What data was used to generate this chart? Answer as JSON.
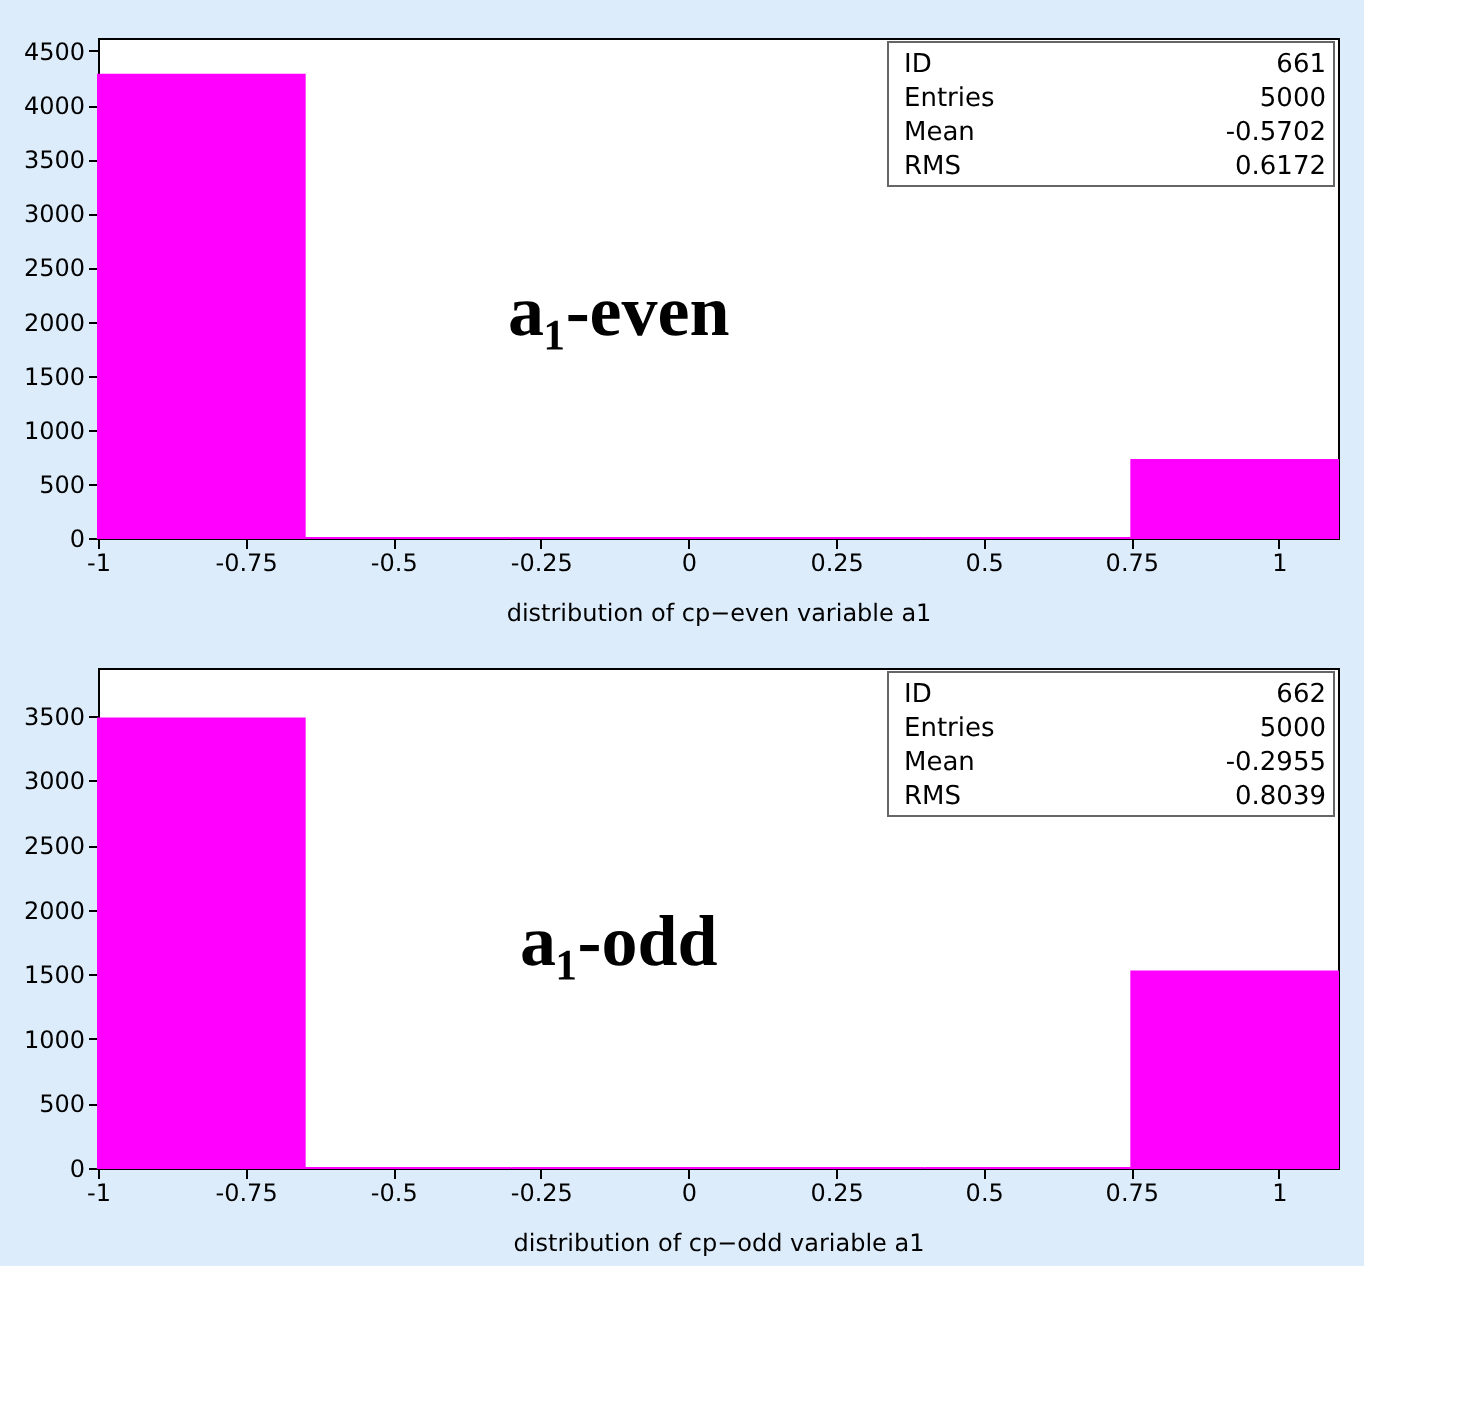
{
  "chart_data": [
    {
      "type": "histogram",
      "xlabel": "distribution of cp−even variable a1",
      "bins": [
        -1,
        -0.65,
        -0.3,
        0.05,
        0.4,
        0.75,
        1.1
      ],
      "values": [
        4280,
        0,
        0,
        0,
        0,
        720
      ],
      "color": "#ff00ff",
      "xlim": [
        -1,
        1.1
      ],
      "xticks": [
        -1,
        -0.75,
        -0.5,
        -0.25,
        0,
        0.25,
        0.5,
        0.75,
        1
      ],
      "ylim": [
        0,
        4620
      ],
      "yticks": [
        0,
        500,
        1000,
        1500,
        2000,
        2500,
        3000,
        3500,
        4000,
        4500
      ],
      "grid": false,
      "annotations": [
        "a₁-even",
        "ID",
        "661",
        "Entries",
        "5000",
        "Mean",
        "-0.5702",
        "RMS",
        "0.6172"
      ]
    },
    {
      "type": "histogram",
      "xlabel": "distribution of cp−odd variable a1",
      "bins": [
        -1,
        -0.65,
        -0.3,
        0.05,
        0.4,
        0.75,
        1.1
      ],
      "values": [
        3480,
        0,
        0,
        0,
        0,
        1520
      ],
      "color": "#ff00ff",
      "xlim": [
        -1,
        1.1
      ],
      "xticks": [
        -1,
        -0.75,
        -0.5,
        -0.25,
        0,
        0.25,
        0.5,
        0.75,
        1
      ],
      "ylim": [
        0,
        3870
      ],
      "yticks": [
        0,
        500,
        1000,
        1500,
        2000,
        2500,
        3000,
        3500
      ],
      "grid": false,
      "annotations": [
        "a₁-odd",
        "ID",
        "662",
        "Entries",
        "5000",
        "Mean",
        "-0.2955",
        "RMS",
        "0.8039"
      ]
    }
  ]
}
